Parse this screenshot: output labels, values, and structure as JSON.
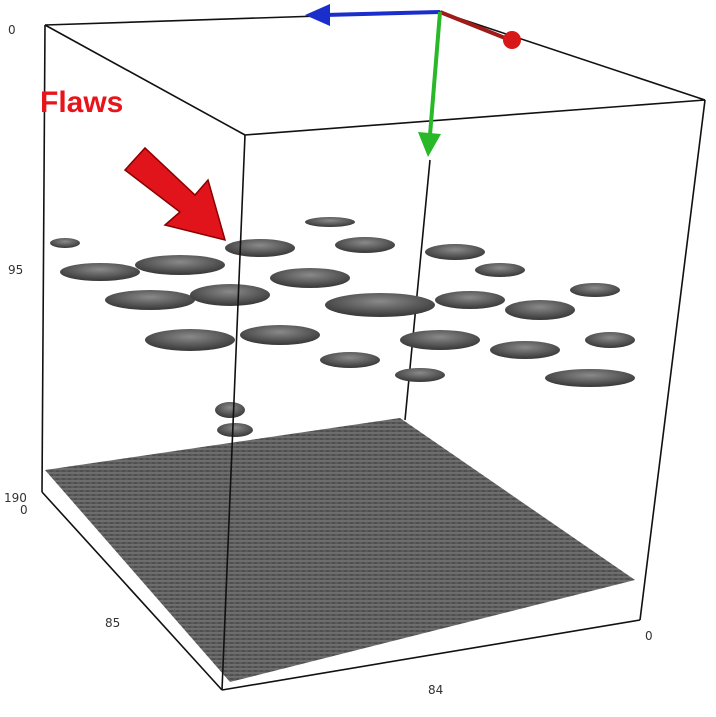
{
  "annotation": "Flaws",
  "axis_labels": {
    "vertical_top": "0",
    "vertical_middle": "95",
    "vertical_bottom": "190",
    "depth_start": "0",
    "depth_middle": "85",
    "width_middle": "84",
    "width_end": "0"
  }
}
